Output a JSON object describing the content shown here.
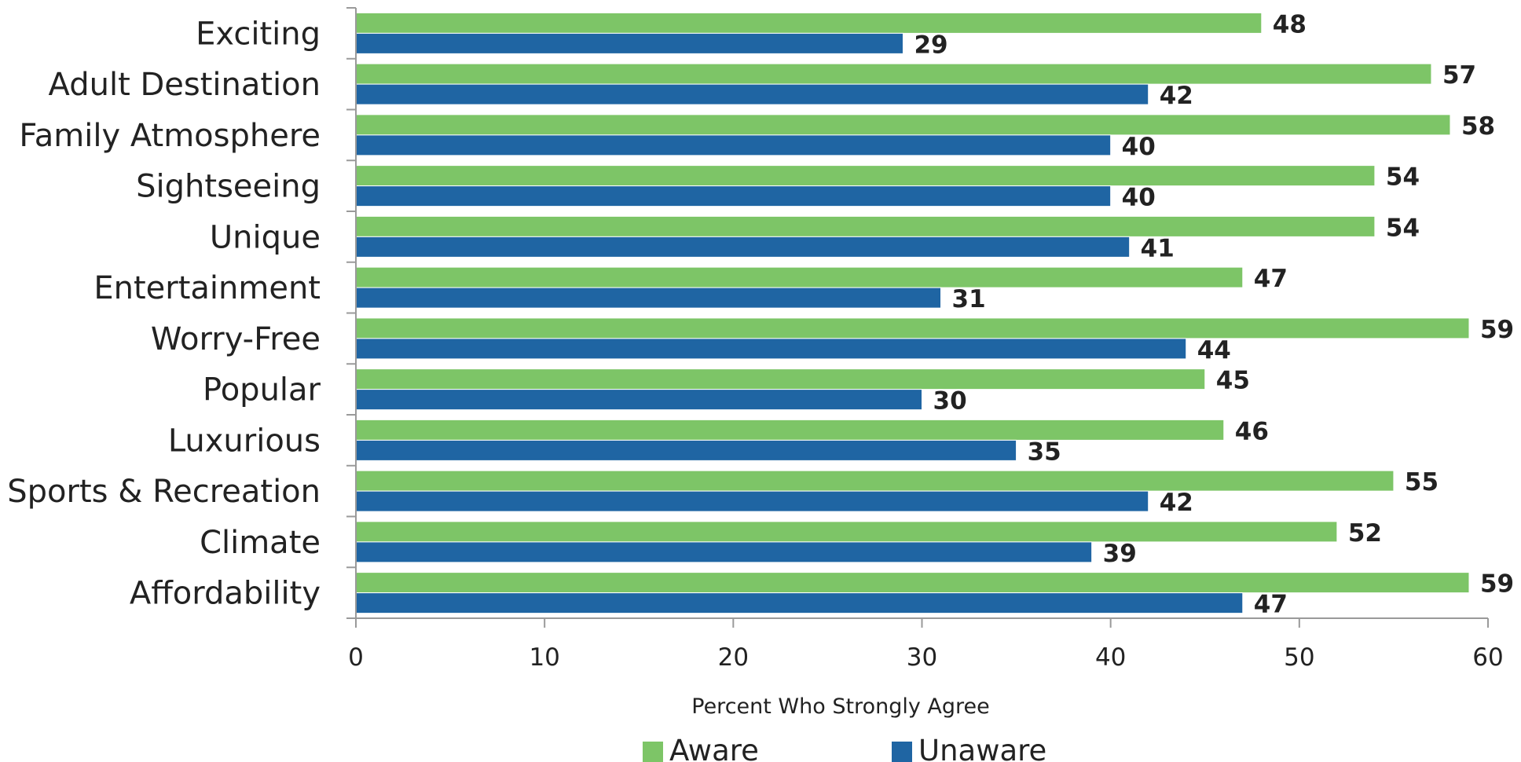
{
  "chart_data": {
    "type": "bar",
    "orientation": "horizontal",
    "categories": [
      "Exciting",
      "Adult Destination",
      "Family Atmosphere",
      "Sightseeing",
      "Unique",
      "Entertainment",
      "Worry-Free",
      "Popular",
      "Luxurious",
      "Sports & Recreation",
      "Climate",
      "Affordability"
    ],
    "series": [
      {
        "name": "Aware",
        "color": "#7dc567",
        "values": [
          48,
          57,
          58,
          54,
          54,
          47,
          59,
          45,
          46,
          55,
          52,
          59
        ]
      },
      {
        "name": "Unaware",
        "color": "#1f65a3",
        "values": [
          29,
          42,
          40,
          40,
          41,
          31,
          44,
          30,
          35,
          42,
          39,
          47
        ]
      }
    ],
    "xlabel": "Percent Who Strongly Agree",
    "ylabel": "",
    "xlim": [
      0,
      60
    ],
    "xticks": [
      "0",
      "10",
      "20",
      "30",
      "40",
      "50",
      "60"
    ],
    "grid": false,
    "data_labels": true,
    "legend": {
      "position": "bottom",
      "items": [
        "Aware",
        "Unaware"
      ]
    }
  }
}
